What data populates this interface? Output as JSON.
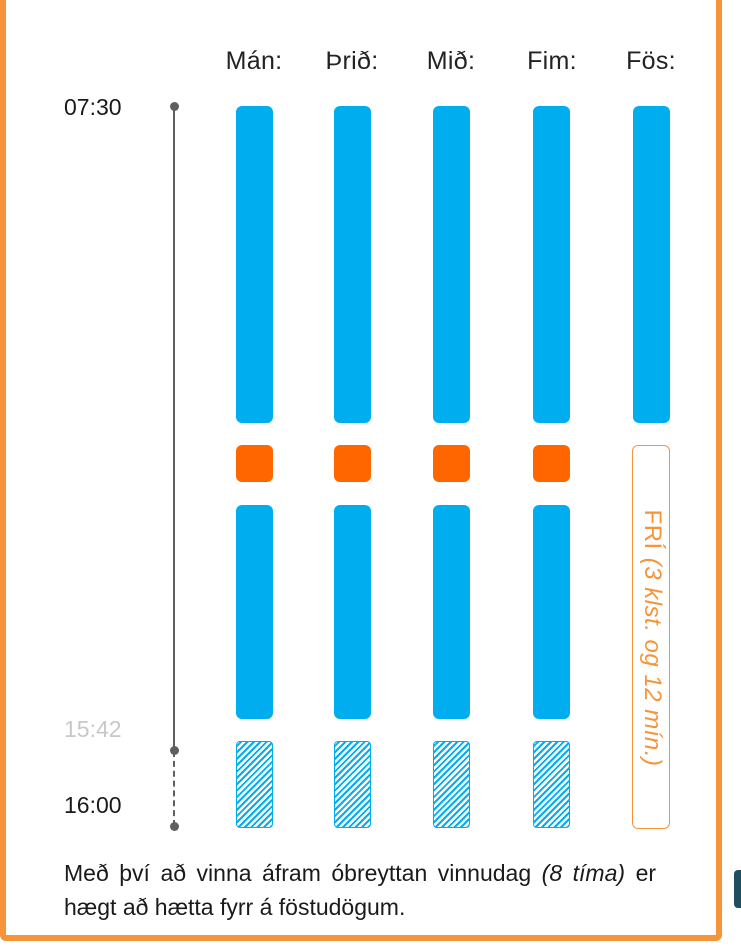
{
  "days": [
    "Mán:",
    "Þrið:",
    "Mið:",
    "Fim:",
    "Fös:"
  ],
  "times": {
    "start": "07:30",
    "normal_end": "15:42",
    "end": "16:00"
  },
  "day_off": {
    "label": "FRÍ",
    "detail": "(3 klst. og 12 mín.)"
  },
  "caption": {
    "text": "Með því að vinna áfram óbreyttan vinnudag",
    "emphasis": "(8 tíma)",
    "text_end": "er hægt að hætta fyrr á föstudögum."
  },
  "colors": {
    "work": "#00aeef",
    "break": "#ff6600",
    "frame": "#f7943a",
    "day_off": "#f7943a",
    "axis": "#5f5f5f"
  }
}
